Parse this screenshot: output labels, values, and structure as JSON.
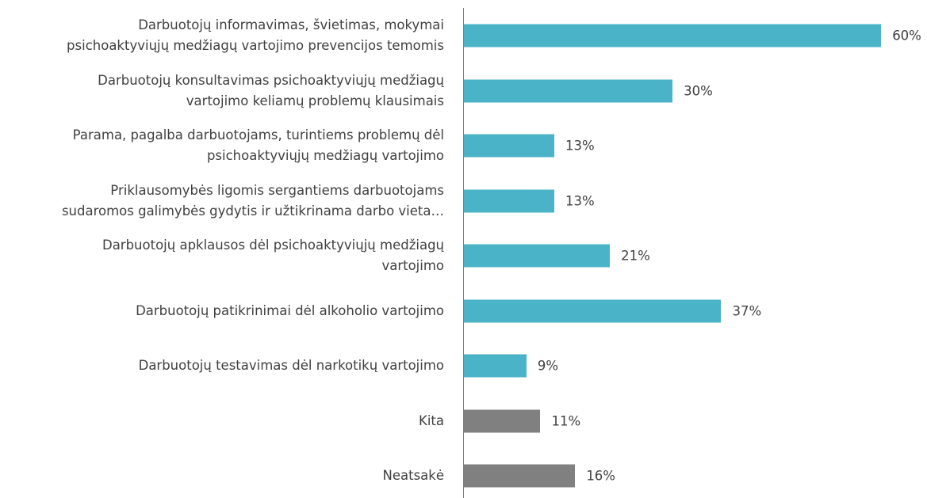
{
  "chart_data": {
    "type": "bar",
    "orientation": "horizontal",
    "categories": [
      "Darbuotojų informavimas, švietimas, mokymai\npsichoaktyviųjų medžiagų vartojimo prevencijos temomis",
      "Darbuotojų konsultavimas psichoaktyviųjų medžiagų\nvartojimo keliamų problemų klausimais",
      "Parama, pagalba darbuotojams, turintiems problemų dėl\npsichoaktyviųjų medžiagų vartojimo",
      "Priklausomybės ligomis sergantiems darbuotojams\nsudaromos galimybės gydytis ir užtikrinama darbo vieta…",
      "Darbuotojų apklausos dėl psichoaktyviųjų medžiagų\nvartojimo",
      "Darbuotojų patikrinimai dėl alkoholio vartojimo",
      "Darbuotojų testavimas dėl narkotikų vartojimo",
      "Kita",
      "Neatsakė"
    ],
    "values": [
      60,
      30,
      13,
      13,
      21,
      37,
      9,
      11,
      16
    ],
    "value_labels": [
      "60%",
      "30%",
      "13%",
      "13%",
      "21%",
      "37%",
      "9%",
      "11%",
      "16%"
    ],
    "colors": [
      "#4bb3c8",
      "#4bb3c8",
      "#4bb3c8",
      "#4bb3c8",
      "#4bb3c8",
      "#4bb3c8",
      "#4bb3c8",
      "#808080",
      "#808080"
    ]
  }
}
